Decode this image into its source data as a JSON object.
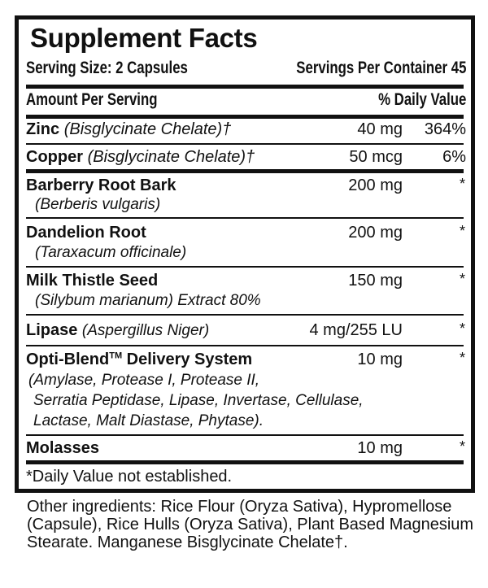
{
  "title": "Supplement Facts",
  "serving_size": "Serving Size: 2 Capsules",
  "servings_per_container": "Servings Per Container 45",
  "header": {
    "amount": "Amount Per Serving",
    "dv": "% Daily Value"
  },
  "rows": [
    {
      "name": "Zinc",
      "source": "(Bisglycinate Chelate)†",
      "amount": "40 mg",
      "dv": "364%"
    },
    {
      "name": "Copper",
      "source": "(Bisglycinate Chelate)†",
      "amount": "50 mcg",
      "dv": "6%"
    },
    {
      "name": "Barberry Root Bark",
      "source": "(Berberis vulgaris)",
      "amount": "200 mg",
      "dv": "*"
    },
    {
      "name": "Dandelion Root",
      "source": "(Taraxacum officinale)",
      "amount": "200 mg",
      "dv": "*"
    },
    {
      "name": "Milk Thistle Seed",
      "source": "(Silybum marianum) Extract 80%",
      "amount": "150 mg",
      "dv": "*"
    },
    {
      "name": "Lipase",
      "source": "(Aspergillus Niger)",
      "amount": "4 mg/255 LU",
      "dv": "*"
    },
    {
      "name": "Opti-Blend",
      "trademark": "TM",
      "name_suffix": " Delivery System",
      "source_lines": [
        "(Amylase, Protease I, Protease II,",
        "Serratia Peptidase, Lipase, Invertase, Cellulase,",
        "Lactase, Malt Diastase, Phytase)."
      ],
      "amount": "10 mg",
      "dv": "*"
    },
    {
      "name": "Molasses",
      "amount": "10 mg",
      "dv": "*"
    }
  ],
  "footnote": "*Daily Value not established.",
  "other_ingredients": "Other ingredients: Rice Flour (Oryza Sativa), Hypromellose (Capsule), Rice Hulls (Oryza Sativa), Plant Based Magnesium Stearate. Manganese Bisglycinate Chelate†."
}
